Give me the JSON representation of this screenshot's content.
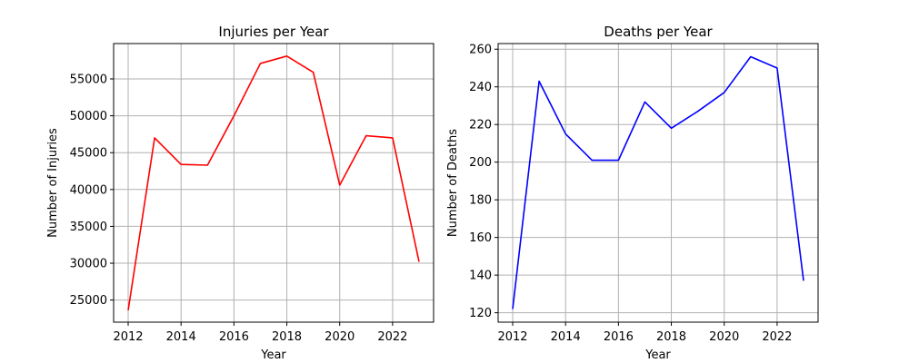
{
  "chart_data": [
    {
      "type": "line",
      "title": "Injuries per Year",
      "xlabel": "Year",
      "ylabel": "Number of Injuries",
      "xlim": [
        2011.45,
        2023.55
      ],
      "ylim": [
        22000,
        59800
      ],
      "xticks": [
        2012,
        2014,
        2016,
        2018,
        2020,
        2022
      ],
      "yticks": [
        25000,
        30000,
        35000,
        40000,
        45000,
        50000,
        55000
      ],
      "grid": true,
      "color": "#ff0000",
      "x": [
        2012,
        2013,
        2014,
        2015,
        2016,
        2017,
        2018,
        2019,
        2020,
        2021,
        2022,
        2023
      ],
      "series": [
        {
          "values": [
            23600,
            47000,
            43400,
            43300,
            50000,
            57100,
            58100,
            55900,
            40600,
            47300,
            47000,
            30200
          ]
        }
      ]
    },
    {
      "type": "line",
      "title": "Deaths per Year",
      "xlabel": "Year",
      "ylabel": "Number of Deaths",
      "xlim": [
        2011.45,
        2023.55
      ],
      "ylim": [
        115,
        263
      ],
      "xticks": [
        2012,
        2014,
        2016,
        2018,
        2020,
        2022
      ],
      "yticks": [
        120,
        140,
        160,
        180,
        200,
        220,
        240,
        260
      ],
      "grid": true,
      "color": "#0000ff",
      "x": [
        2012,
        2013,
        2014,
        2015,
        2016,
        2017,
        2018,
        2019,
        2020,
        2021,
        2022,
        2023
      ],
      "series": [
        {
          "values": [
            122,
            243,
            215,
            201,
            201,
            232,
            218,
            227,
            237,
            256,
            250,
            137
          ]
        }
      ]
    }
  ]
}
